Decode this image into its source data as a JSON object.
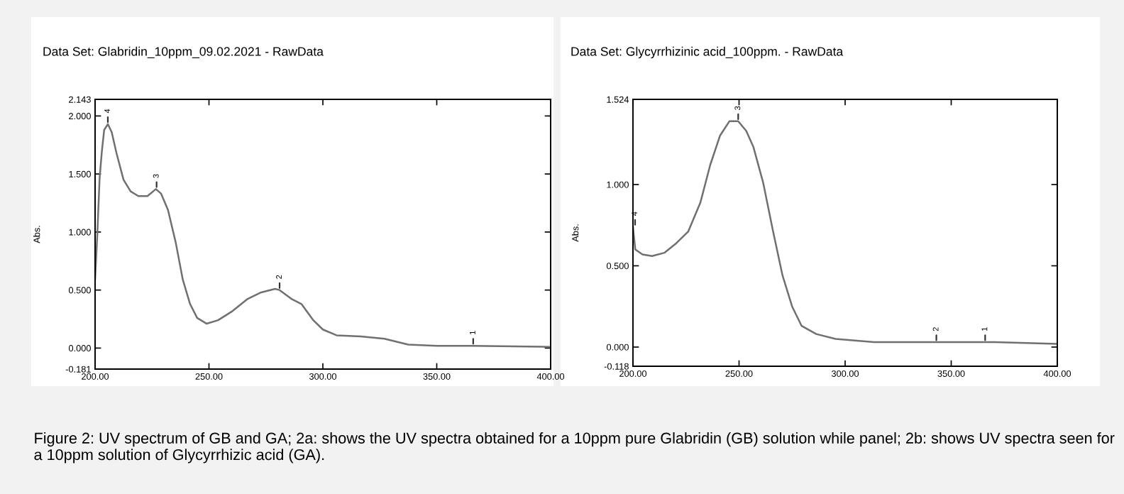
{
  "chart_data": [
    {
      "type": "line",
      "title": "Data Set: Glabridin_10ppm_09.02.2021 - RawData",
      "ylabel": "Abs.",
      "x": [
        200,
        201,
        202,
        203,
        204,
        205.6,
        207.3,
        209.4,
        212.5,
        215.6,
        219,
        223,
        226.7,
        229,
        232,
        235.4,
        238.5,
        241.7,
        244.8,
        249,
        254,
        260.4,
        266.7,
        272.9,
        279,
        281,
        286.5,
        290.6,
        295.8,
        300,
        306,
        316.7,
        327,
        337.5,
        350,
        365.6,
        400
      ],
      "series": [
        {
          "color": "#707070",
          "values": [
            0.59,
            0.99,
            1.47,
            1.7,
            1.88,
            1.93,
            1.86,
            1.68,
            1.45,
            1.35,
            1.31,
            1.31,
            1.37,
            1.33,
            1.19,
            0.91,
            0.59,
            0.38,
            0.26,
            0.21,
            0.24,
            0.32,
            0.42,
            0.48,
            0.51,
            0.5,
            0.42,
            0.38,
            0.24,
            0.16,
            0.11,
            0.1,
            0.08,
            0.03,
            0.02,
            0.02,
            0.01
          ]
        }
      ],
      "xlim": [
        200,
        400
      ],
      "xticks": [
        {
          "value": 200,
          "label": "200.00"
        },
        {
          "value": 250,
          "label": "250.00"
        },
        {
          "value": 300,
          "label": "300.00"
        },
        {
          "value": 350,
          "label": "350.00"
        },
        {
          "value": 400,
          "label": "400.00"
        }
      ],
      "ylim": [
        -0.181,
        2.143
      ],
      "yticks": [
        {
          "value": -0.181,
          "label": "-0.181"
        },
        {
          "value": 0,
          "label": "0.000"
        },
        {
          "value": 0.5,
          "label": "0.500"
        },
        {
          "value": 1,
          "label": "1.000"
        },
        {
          "value": 1.5,
          "label": "1.500"
        },
        {
          "value": 2,
          "label": "2.000"
        },
        {
          "value": 2.143,
          "label": "2.143"
        }
      ],
      "grid": false,
      "legend": false,
      "marker": "none",
      "line_style": "solid",
      "annotations": [
        {
          "text": "4",
          "x": 205.6,
          "y": 1.93
        },
        {
          "text": "3",
          "x": 227,
          "y": 1.37
        },
        {
          "text": "2",
          "x": 281,
          "y": 0.5
        },
        {
          "text": "1",
          "x": 366,
          "y": 0.02
        },
        "Figure 2: UV spectrum of GB and GA; 2a: shows the UV spectra obtained for a 10ppm pure Glabridin (GB) solution while panel; 2b: shows UV spectra seen for a 10ppm solution of Glycyrrhizic acid (GA)."
      ]
    },
    {
      "type": "line",
      "title": "Data Set: Glycyrrhizinic acid_100ppm. - RawData",
      "ylabel": "Abs.",
      "x": [
        200,
        201.1,
        204.5,
        209,
        214.8,
        220.5,
        226,
        231.8,
        236.4,
        241,
        245.5,
        249.6,
        253.4,
        256.8,
        261.4,
        265.9,
        270.5,
        275,
        279.5,
        286.4,
        295.5,
        313.6,
        347.7,
        370.5,
        400
      ],
      "series": [
        {
          "color": "#707070",
          "values": [
            0.74,
            0.6,
            0.57,
            0.56,
            0.58,
            0.64,
            0.71,
            0.89,
            1.12,
            1.3,
            1.39,
            1.39,
            1.33,
            1.23,
            1.01,
            0.72,
            0.44,
            0.25,
            0.13,
            0.08,
            0.05,
            0.03,
            0.03,
            0.03,
            0.02
          ]
        }
      ],
      "xlim": [
        200,
        400
      ],
      "xticks": [
        {
          "value": 200,
          "label": "200.00"
        },
        {
          "value": 250,
          "label": "250.00"
        },
        {
          "value": 300,
          "label": "300.00"
        },
        {
          "value": 350,
          "label": "350.00"
        },
        {
          "value": 400,
          "label": "400.00"
        }
      ],
      "ylim": [
        -0.118,
        1.524
      ],
      "yticks": [
        {
          "value": -0.118,
          "label": "-0.118"
        },
        {
          "value": 0,
          "label": "0.000"
        },
        {
          "value": 0.5,
          "label": "0.500"
        },
        {
          "value": 1,
          "label": "1.000"
        },
        {
          "value": 1.524,
          "label": "1.524"
        }
      ],
      "grid": false,
      "legend": false,
      "marker": "none",
      "line_style": "solid",
      "annotations": [
        {
          "text": "4",
          "x": 201,
          "y": 0.74
        },
        {
          "text": "3",
          "x": 249.6,
          "y": 1.39
        },
        {
          "text": "2",
          "x": 343,
          "y": 0.03
        },
        {
          "text": "1",
          "x": 366,
          "y": 0.03
        }
      ]
    }
  ]
}
